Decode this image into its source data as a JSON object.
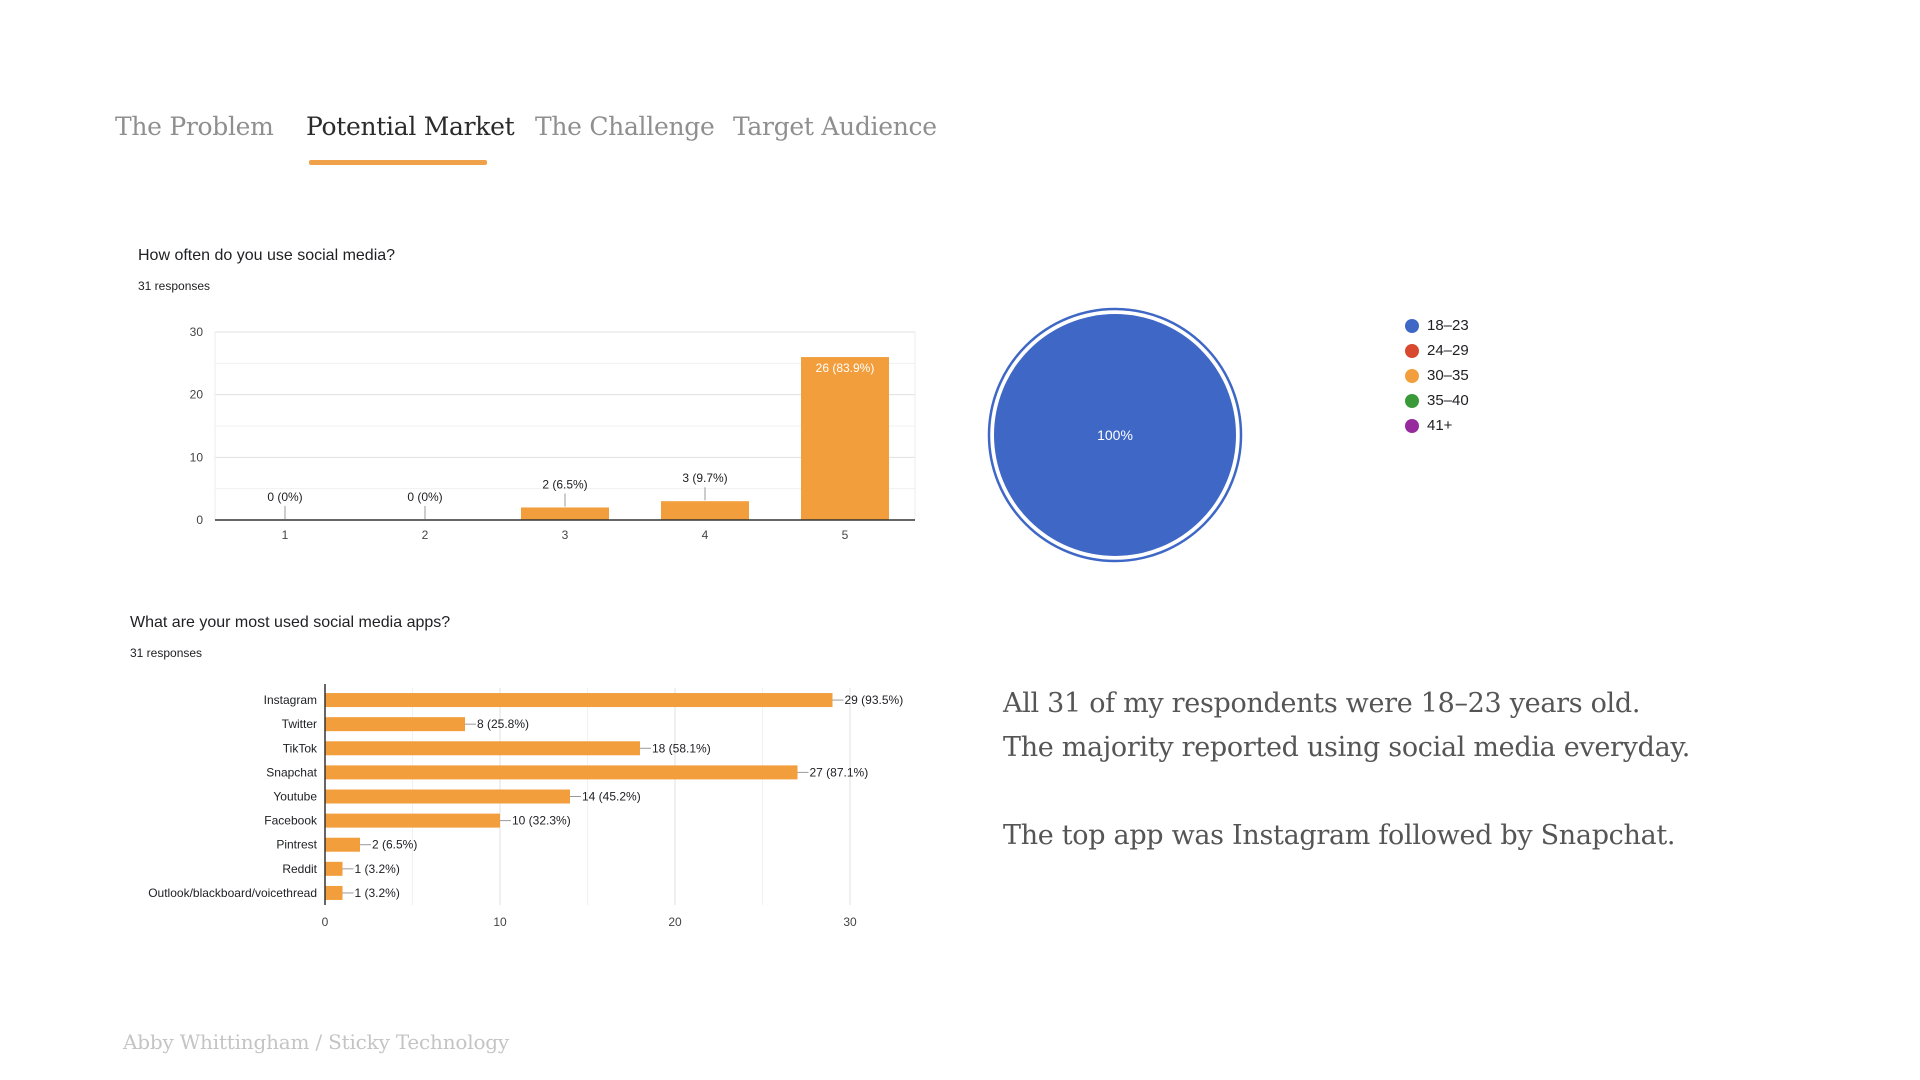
{
  "tabs": [
    {
      "label": "The Problem",
      "active": false
    },
    {
      "label": "Potential Market",
      "active": true
    },
    {
      "label": "The Challenge",
      "active": false
    },
    {
      "label": "Target Audience",
      "active": false
    }
  ],
  "colors": {
    "accent": "#f0a24a",
    "bar": "#f29e3d",
    "pie_blue": "#3f67c6",
    "tab_inactive": "#8f8f8f",
    "tab_active": "#2b2b2b"
  },
  "frequency_chart": {
    "question": "How often do you use social media?",
    "responses": "31 responses"
  },
  "apps_chart": {
    "question": "What are your most used social media apps?",
    "responses": "31 responses"
  },
  "age_chart": {
    "legend": [
      {
        "label": "18–23",
        "color": "#3f67c6"
      },
      {
        "label": "24–29",
        "color": "#d9492f"
      },
      {
        "label": "30–35",
        "color": "#f29e3d"
      },
      {
        "label": "35–40",
        "color": "#3a9a3a"
      },
      {
        "label": "41+",
        "color": "#962a9c"
      }
    ]
  },
  "chart_data": [
    {
      "type": "bar",
      "orientation": "vertical",
      "categories": [
        "1",
        "2",
        "3",
        "4",
        "5"
      ],
      "values": [
        0,
        0,
        2,
        3,
        26
      ],
      "data_labels": [
        "0 (0%)",
        "0 (0%)",
        "2 (6.5%)",
        "3 (9.7%)",
        "26 (83.9%)"
      ],
      "yticks": [
        "0",
        "10",
        "20",
        "30"
      ],
      "ylim": [
        0,
        30
      ],
      "grid": true
    },
    {
      "type": "bar",
      "orientation": "horizontal",
      "categories": [
        "Instagram",
        "Twitter",
        "TikTok",
        "Snapchat",
        "Youtube",
        "Facebook",
        "Pintrest",
        "Reddit",
        "Outlook/blackboard/voicethread"
      ],
      "values": [
        29,
        8,
        18,
        27,
        14,
        10,
        2,
        1,
        1
      ],
      "data_labels": [
        "29 (93.5%)",
        "8 (25.8%)",
        "18 (58.1%)",
        "27 (87.1%)",
        "14 (45.2%)",
        "10 (32.3%)",
        "2 (6.5%)",
        "1 (3.2%)",
        "1 (3.2%)"
      ],
      "xticks": [
        "0",
        "10",
        "20",
        "30"
      ],
      "xlim": [
        0,
        30
      ],
      "grid": true
    },
    {
      "type": "pie",
      "categories": [
        "18–23",
        "24–29",
        "30–35",
        "35–40",
        "41+"
      ],
      "values": [
        100,
        0,
        0,
        0,
        0
      ],
      "slice_label": "100%",
      "legend": "right"
    }
  ],
  "summary": {
    "line1": "All 31 of my respondents were 18–23 years old.",
    "line2": "The majority reported using social media everyday.",
    "line3": "The top app was Instagram followed by Snapchat."
  },
  "footer": "Abby Whittingham / Sticky Technology"
}
